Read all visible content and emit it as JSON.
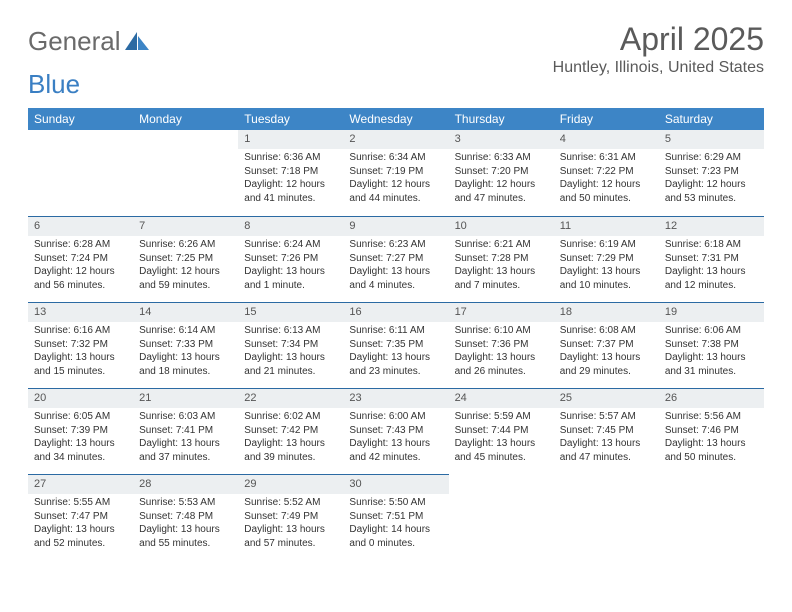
{
  "brand": {
    "part1": "General",
    "part2": "Blue"
  },
  "title": "April 2025",
  "location": "Huntley, Illinois, United States",
  "colors": {
    "header_bg": "#3d85c6",
    "header_text": "#ffffff",
    "daynum_bg": "#eceff1",
    "row_divider": "#2b6aa3",
    "text": "#333333",
    "title_color": "#5a5a5a",
    "logo_gray": "#6a6a6a",
    "logo_blue": "#3a7fc3"
  },
  "weekdays": [
    "Sunday",
    "Monday",
    "Tuesday",
    "Wednesday",
    "Thursday",
    "Friday",
    "Saturday"
  ],
  "weeks": [
    [
      null,
      null,
      {
        "n": "1",
        "sr": "Sunrise: 6:36 AM",
        "ss": "Sunset: 7:18 PM",
        "d1": "Daylight: 12 hours",
        "d2": "and 41 minutes."
      },
      {
        "n": "2",
        "sr": "Sunrise: 6:34 AM",
        "ss": "Sunset: 7:19 PM",
        "d1": "Daylight: 12 hours",
        "d2": "and 44 minutes."
      },
      {
        "n": "3",
        "sr": "Sunrise: 6:33 AM",
        "ss": "Sunset: 7:20 PM",
        "d1": "Daylight: 12 hours",
        "d2": "and 47 minutes."
      },
      {
        "n": "4",
        "sr": "Sunrise: 6:31 AM",
        "ss": "Sunset: 7:22 PM",
        "d1": "Daylight: 12 hours",
        "d2": "and 50 minutes."
      },
      {
        "n": "5",
        "sr": "Sunrise: 6:29 AM",
        "ss": "Sunset: 7:23 PM",
        "d1": "Daylight: 12 hours",
        "d2": "and 53 minutes."
      }
    ],
    [
      {
        "n": "6",
        "sr": "Sunrise: 6:28 AM",
        "ss": "Sunset: 7:24 PM",
        "d1": "Daylight: 12 hours",
        "d2": "and 56 minutes."
      },
      {
        "n": "7",
        "sr": "Sunrise: 6:26 AM",
        "ss": "Sunset: 7:25 PM",
        "d1": "Daylight: 12 hours",
        "d2": "and 59 minutes."
      },
      {
        "n": "8",
        "sr": "Sunrise: 6:24 AM",
        "ss": "Sunset: 7:26 PM",
        "d1": "Daylight: 13 hours",
        "d2": "and 1 minute."
      },
      {
        "n": "9",
        "sr": "Sunrise: 6:23 AM",
        "ss": "Sunset: 7:27 PM",
        "d1": "Daylight: 13 hours",
        "d2": "and 4 minutes."
      },
      {
        "n": "10",
        "sr": "Sunrise: 6:21 AM",
        "ss": "Sunset: 7:28 PM",
        "d1": "Daylight: 13 hours",
        "d2": "and 7 minutes."
      },
      {
        "n": "11",
        "sr": "Sunrise: 6:19 AM",
        "ss": "Sunset: 7:29 PM",
        "d1": "Daylight: 13 hours",
        "d2": "and 10 minutes."
      },
      {
        "n": "12",
        "sr": "Sunrise: 6:18 AM",
        "ss": "Sunset: 7:31 PM",
        "d1": "Daylight: 13 hours",
        "d2": "and 12 minutes."
      }
    ],
    [
      {
        "n": "13",
        "sr": "Sunrise: 6:16 AM",
        "ss": "Sunset: 7:32 PM",
        "d1": "Daylight: 13 hours",
        "d2": "and 15 minutes."
      },
      {
        "n": "14",
        "sr": "Sunrise: 6:14 AM",
        "ss": "Sunset: 7:33 PM",
        "d1": "Daylight: 13 hours",
        "d2": "and 18 minutes."
      },
      {
        "n": "15",
        "sr": "Sunrise: 6:13 AM",
        "ss": "Sunset: 7:34 PM",
        "d1": "Daylight: 13 hours",
        "d2": "and 21 minutes."
      },
      {
        "n": "16",
        "sr": "Sunrise: 6:11 AM",
        "ss": "Sunset: 7:35 PM",
        "d1": "Daylight: 13 hours",
        "d2": "and 23 minutes."
      },
      {
        "n": "17",
        "sr": "Sunrise: 6:10 AM",
        "ss": "Sunset: 7:36 PM",
        "d1": "Daylight: 13 hours",
        "d2": "and 26 minutes."
      },
      {
        "n": "18",
        "sr": "Sunrise: 6:08 AM",
        "ss": "Sunset: 7:37 PM",
        "d1": "Daylight: 13 hours",
        "d2": "and 29 minutes."
      },
      {
        "n": "19",
        "sr": "Sunrise: 6:06 AM",
        "ss": "Sunset: 7:38 PM",
        "d1": "Daylight: 13 hours",
        "d2": "and 31 minutes."
      }
    ],
    [
      {
        "n": "20",
        "sr": "Sunrise: 6:05 AM",
        "ss": "Sunset: 7:39 PM",
        "d1": "Daylight: 13 hours",
        "d2": "and 34 minutes."
      },
      {
        "n": "21",
        "sr": "Sunrise: 6:03 AM",
        "ss": "Sunset: 7:41 PM",
        "d1": "Daylight: 13 hours",
        "d2": "and 37 minutes."
      },
      {
        "n": "22",
        "sr": "Sunrise: 6:02 AM",
        "ss": "Sunset: 7:42 PM",
        "d1": "Daylight: 13 hours",
        "d2": "and 39 minutes."
      },
      {
        "n": "23",
        "sr": "Sunrise: 6:00 AM",
        "ss": "Sunset: 7:43 PM",
        "d1": "Daylight: 13 hours",
        "d2": "and 42 minutes."
      },
      {
        "n": "24",
        "sr": "Sunrise: 5:59 AM",
        "ss": "Sunset: 7:44 PM",
        "d1": "Daylight: 13 hours",
        "d2": "and 45 minutes."
      },
      {
        "n": "25",
        "sr": "Sunrise: 5:57 AM",
        "ss": "Sunset: 7:45 PM",
        "d1": "Daylight: 13 hours",
        "d2": "and 47 minutes."
      },
      {
        "n": "26",
        "sr": "Sunrise: 5:56 AM",
        "ss": "Sunset: 7:46 PM",
        "d1": "Daylight: 13 hours",
        "d2": "and 50 minutes."
      }
    ],
    [
      {
        "n": "27",
        "sr": "Sunrise: 5:55 AM",
        "ss": "Sunset: 7:47 PM",
        "d1": "Daylight: 13 hours",
        "d2": "and 52 minutes."
      },
      {
        "n": "28",
        "sr": "Sunrise: 5:53 AM",
        "ss": "Sunset: 7:48 PM",
        "d1": "Daylight: 13 hours",
        "d2": "and 55 minutes."
      },
      {
        "n": "29",
        "sr": "Sunrise: 5:52 AM",
        "ss": "Sunset: 7:49 PM",
        "d1": "Daylight: 13 hours",
        "d2": "and 57 minutes."
      },
      {
        "n": "30",
        "sr": "Sunrise: 5:50 AM",
        "ss": "Sunset: 7:51 PM",
        "d1": "Daylight: 14 hours",
        "d2": "and 0 minutes."
      },
      null,
      null,
      null
    ]
  ]
}
